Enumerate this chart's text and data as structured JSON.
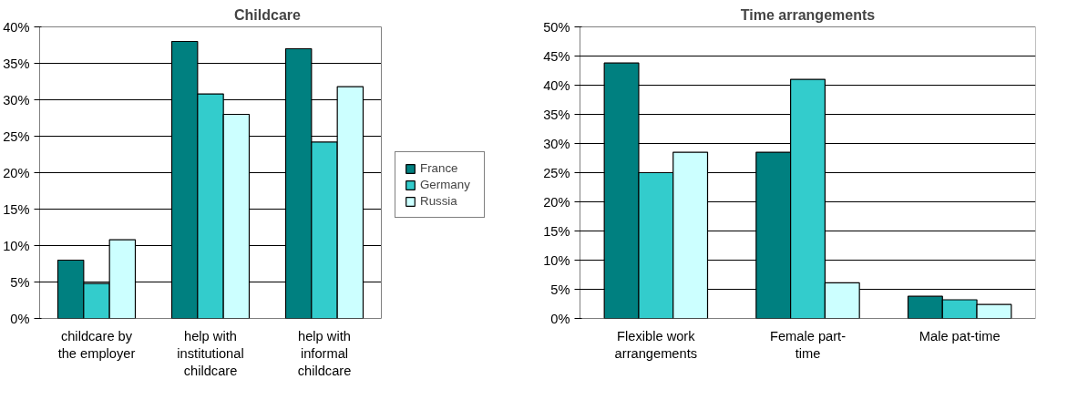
{
  "chart_data": [
    {
      "type": "bar",
      "title": "Childcare",
      "categories": [
        "childcare by\nthe employer",
        "help with\ninstitutional\nchildcare",
        "help with\ninformal\nchildcare"
      ],
      "series": [
        {
          "name": "France",
          "color": "#008080",
          "values": [
            8,
            38,
            37
          ]
        },
        {
          "name": "Germany",
          "color": "#33cccc",
          "values": [
            4.8,
            30.8,
            24.2
          ]
        },
        {
          "name": "Russia",
          "color": "#ccffff",
          "values": [
            10.8,
            28,
            31.8
          ]
        }
      ],
      "ylim": [
        0,
        40
      ],
      "yticks": [
        {
          "value": 0,
          "label": "0%"
        },
        {
          "value": 5,
          "label": "5%"
        },
        {
          "value": 10,
          "label": "10%"
        },
        {
          "value": 15,
          "label": "15%"
        },
        {
          "value": 20,
          "label": "20%"
        },
        {
          "value": 25,
          "label": "25%"
        },
        {
          "value": 30,
          "label": "30%"
        },
        {
          "value": 35,
          "label": "35%"
        },
        {
          "value": 40,
          "label": "40%"
        }
      ],
      "grid": "y",
      "legend": "right"
    },
    {
      "type": "bar",
      "title": "Time arrangements",
      "categories": [
        "Flexible work\narrangements",
        "Female part-\ntime",
        "Male pat-time"
      ],
      "series": [
        {
          "color": "#008080",
          "values": [
            43.8,
            28.5,
            3.8
          ]
        },
        {
          "color": "#33cccc",
          "values": [
            25,
            41,
            3.2
          ]
        },
        {
          "color": "#ccffff",
          "values": [
            28.5,
            6.1,
            2.4
          ]
        }
      ],
      "ylim": [
        0,
        50
      ],
      "yticks": [
        {
          "value": 0,
          "label": "0%"
        },
        {
          "value": 5,
          "label": "5%"
        },
        {
          "value": 10,
          "label": "10%"
        },
        {
          "value": 15,
          "label": "15%"
        },
        {
          "value": 20,
          "label": "20%"
        },
        {
          "value": 25,
          "label": "25%"
        },
        {
          "value": 30,
          "label": "30%"
        },
        {
          "value": 35,
          "label": "35%"
        },
        {
          "value": 40,
          "label": "40%"
        },
        {
          "value": 45,
          "label": "45%"
        },
        {
          "value": 50,
          "label": "50%"
        }
      ],
      "grid": "y"
    }
  ]
}
